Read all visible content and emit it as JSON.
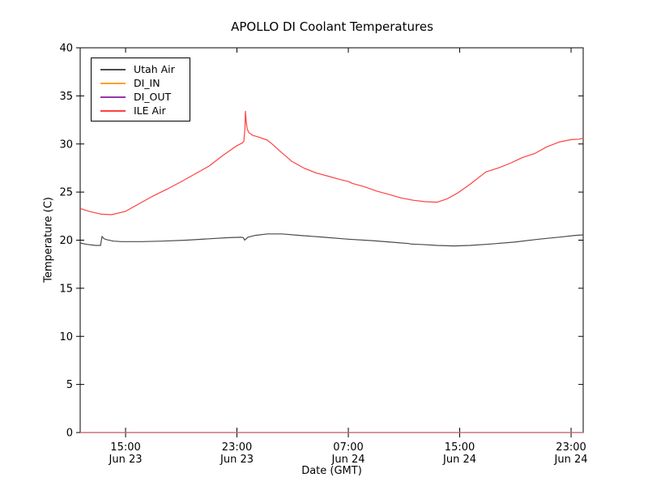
{
  "chart_data": {
    "type": "line",
    "title": "APOLLO DI Coolant Temperatures",
    "xlabel": "Date (GMT)",
    "ylabel": "Temperature (C)",
    "ylim": [
      0,
      40
    ],
    "y_ticks": [
      0,
      5,
      10,
      15,
      20,
      25,
      30,
      35,
      40
    ],
    "x_range_hours": [
      11.74,
      47.87
    ],
    "x_ticks": [
      {
        "hour": 15,
        "time": "15:00",
        "date": "Jun 23"
      },
      {
        "hour": 23,
        "time": "23:00",
        "date": "Jun 23"
      },
      {
        "hour": 31,
        "time": "07:00",
        "date": "Jun 24"
      },
      {
        "hour": 39,
        "time": "15:00",
        "date": "Jun 24"
      },
      {
        "hour": 47,
        "time": "23:00",
        "date": "Jun 24"
      }
    ],
    "grid": false,
    "legend_position": "upper left",
    "series": [
      {
        "name": "Utah Air",
        "color": "#4a4a4a",
        "opacity": 1,
        "points": [
          [
            11.74,
            19.7
          ],
          [
            12.27,
            19.55
          ],
          [
            12.85,
            19.45
          ],
          [
            13.2,
            19.45
          ],
          [
            13.31,
            20.4
          ],
          [
            13.45,
            20.15
          ],
          [
            13.66,
            20.05
          ],
          [
            14.13,
            19.9
          ],
          [
            14.71,
            19.85
          ],
          [
            16.16,
            19.85
          ],
          [
            17.62,
            19.9
          ],
          [
            19.36,
            20.0
          ],
          [
            21.11,
            20.15
          ],
          [
            22.27,
            20.25
          ],
          [
            23.26,
            20.3
          ],
          [
            23.45,
            20.28
          ],
          [
            23.55,
            20.0
          ],
          [
            23.78,
            20.3
          ],
          [
            24.31,
            20.5
          ],
          [
            25.18,
            20.65
          ],
          [
            26.23,
            20.65
          ],
          [
            27.51,
            20.5
          ],
          [
            29.25,
            20.3
          ],
          [
            31.0,
            20.1
          ],
          [
            32.75,
            19.95
          ],
          [
            34.49,
            19.75
          ],
          [
            35.36,
            19.65
          ],
          [
            35.5,
            19.6
          ],
          [
            36.24,
            19.55
          ],
          [
            37.4,
            19.45
          ],
          [
            38.56,
            19.4
          ],
          [
            39.73,
            19.45
          ],
          [
            41.18,
            19.6
          ],
          [
            42.93,
            19.8
          ],
          [
            44.67,
            20.1
          ],
          [
            46.42,
            20.35
          ],
          [
            47.29,
            20.5
          ],
          [
            47.87,
            20.55
          ]
        ]
      },
      {
        "name": "DI_IN",
        "color": "#ffa028",
        "opacity": 1,
        "points": [
          [
            11.74,
            0
          ],
          [
            47.87,
            0
          ]
        ]
      },
      {
        "name": "DI_OUT",
        "color": "#9933aa",
        "opacity": 0.6,
        "points": [
          [
            11.74,
            0
          ],
          [
            47.87,
            0
          ]
        ]
      },
      {
        "name": "ILE Air",
        "color": "#ff4040",
        "opacity": 1,
        "points": [
          [
            11.74,
            23.3
          ],
          [
            12.38,
            23.0
          ],
          [
            13.25,
            22.7
          ],
          [
            14.01,
            22.65
          ],
          [
            15.0,
            23.0
          ],
          [
            15.99,
            23.8
          ],
          [
            16.98,
            24.6
          ],
          [
            17.97,
            25.3
          ],
          [
            19.01,
            26.1
          ],
          [
            20.0,
            26.9
          ],
          [
            20.99,
            27.7
          ],
          [
            21.98,
            28.8
          ],
          [
            22.97,
            29.8
          ],
          [
            23.38,
            30.1
          ],
          [
            23.5,
            30.3
          ],
          [
            23.58,
            31.8
          ],
          [
            23.61,
            33.4
          ],
          [
            23.66,
            32.4
          ],
          [
            23.73,
            31.6
          ],
          [
            23.84,
            31.2
          ],
          [
            24.13,
            30.9
          ],
          [
            24.6,
            30.7
          ],
          [
            25.18,
            30.4
          ],
          [
            25.53,
            30.0
          ],
          [
            26.05,
            29.3
          ],
          [
            26.93,
            28.2
          ],
          [
            27.8,
            27.5
          ],
          [
            28.67,
            27.0
          ],
          [
            29.55,
            26.65
          ],
          [
            30.42,
            26.3
          ],
          [
            31.0,
            26.1
          ],
          [
            31.29,
            25.9
          ],
          [
            32.16,
            25.55
          ],
          [
            33.04,
            25.1
          ],
          [
            33.91,
            24.75
          ],
          [
            34.78,
            24.4
          ],
          [
            35.65,
            24.15
          ],
          [
            36.53,
            24.0
          ],
          [
            37.4,
            23.95
          ],
          [
            38.1,
            24.3
          ],
          [
            38.85,
            24.9
          ],
          [
            39.73,
            25.8
          ],
          [
            40.89,
            27.1
          ],
          [
            41.76,
            27.5
          ],
          [
            42.64,
            28.0
          ],
          [
            43.51,
            28.6
          ],
          [
            44.38,
            29.0
          ],
          [
            45.25,
            29.7
          ],
          [
            46.13,
            30.2
          ],
          [
            47.0,
            30.45
          ],
          [
            47.58,
            30.5
          ],
          [
            47.87,
            30.6
          ]
        ]
      }
    ]
  }
}
